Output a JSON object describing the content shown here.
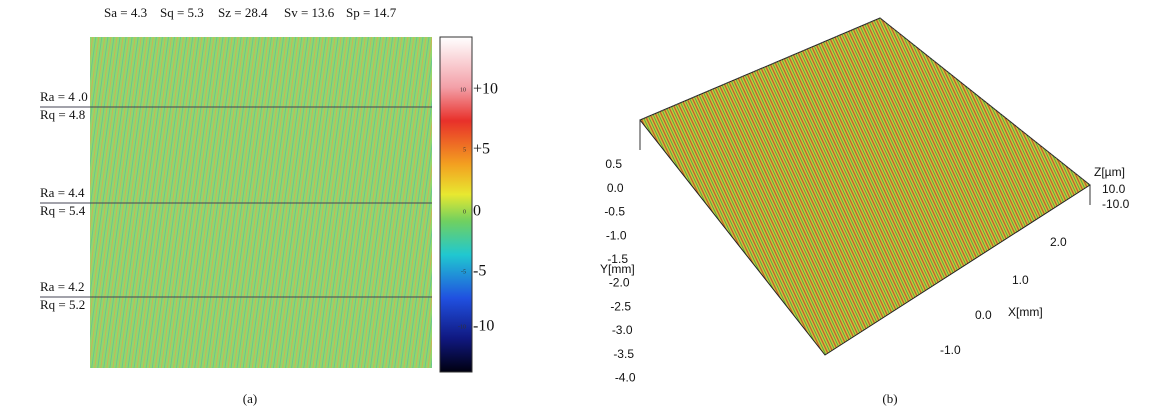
{
  "panel_a": {
    "stats": [
      "Sa = 4.3",
      "Sq = 5.3",
      "Sz = 28.4",
      "Sv = 13.6",
      "Sp = 14.7"
    ],
    "profiles": [
      {
        "ra": "Ra = 4 .0",
        "rq": "Rq = 4.8"
      },
      {
        "ra": "Ra = 4.4",
        "rq": "Rq = 5.4"
      },
      {
        "ra": "Ra = 4.2",
        "rq": "Rq = 5.2"
      }
    ],
    "colorbar_inner_ticks": [
      "10",
      "5",
      "0",
      "-5",
      "-10"
    ],
    "colorbar_ticks": [
      "+10",
      "+5",
      "0",
      "-5",
      "-10"
    ],
    "caption": "(a)"
  },
  "panel_b": {
    "z_label": "Z[µm]",
    "z_ticks": [
      "10.0",
      "-10.0"
    ],
    "y_label": "Y[mm]",
    "y_ticks": [
      "0.5",
      "0.0",
      "-0.5",
      "-1.0",
      "-1.5",
      "-2.0",
      "-2.5",
      "-3.0",
      "-3.5",
      "-4.0"
    ],
    "x_label": "X[mm]",
    "x_ticks": [
      "2.0",
      "1.0",
      "0.0",
      "-1.0"
    ],
    "caption": "(b)"
  }
}
